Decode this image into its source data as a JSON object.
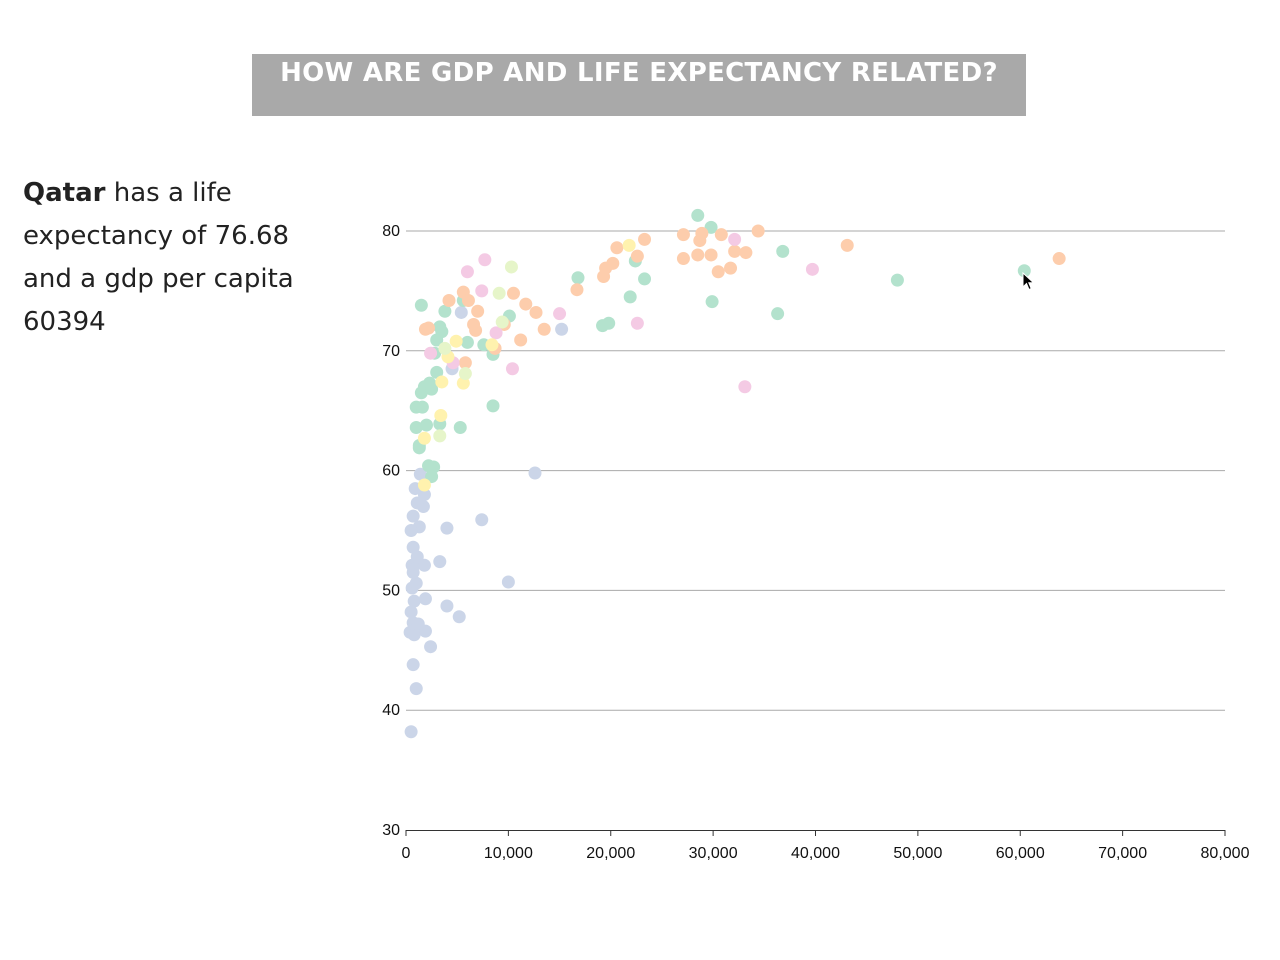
{
  "title": "HOW ARE GDP AND LIFE EXPECTANCY RELATED?",
  "info": {
    "country": "Qatar",
    "text_1": "has a life expectancy of",
    "life_expectancy": "76.68",
    "text_2": "and a gdp per capita",
    "gdp": "60394"
  },
  "colors": {
    "title_bg": "#a9a9a9",
    "green": "#b3e2cd",
    "orange": "#fdcdac",
    "blue": "#cbd5e8",
    "pink": "#f4cae4",
    "yellow": "#fff2ae",
    "lime": "#e6f5c9",
    "gridline": "#aaaaaa"
  },
  "chart_data": {
    "type": "scatter",
    "xlim": [
      0,
      80000
    ],
    "ylim": [
      30,
      80
    ],
    "x_ticks": [
      "0",
      "10,000",
      "20,000",
      "30,000",
      "40,000",
      "50,000",
      "60,000",
      "70,000",
      "80,000"
    ],
    "y_ticks": [
      "30",
      "40",
      "50",
      "60",
      "70",
      "80"
    ],
    "grid": "horizontal",
    "series": [
      {
        "color_key": "blue",
        "points": [
          [
            500,
            38.2
          ],
          [
            1000,
            41.8
          ],
          [
            700,
            43.8
          ],
          [
            2400,
            45.3
          ],
          [
            400,
            46.5
          ],
          [
            800,
            46.3
          ],
          [
            1900,
            46.6
          ],
          [
            5200,
            47.8
          ],
          [
            700,
            47.3
          ],
          [
            1200,
            47.2
          ],
          [
            500,
            48.2
          ],
          [
            4000,
            48.7
          ],
          [
            800,
            49.1
          ],
          [
            1900,
            49.3
          ],
          [
            600,
            50.2
          ],
          [
            10000,
            50.7
          ],
          [
            1000,
            50.6
          ],
          [
            700,
            51.5
          ],
          [
            600,
            52.1
          ],
          [
            1200,
            52.3
          ],
          [
            1800,
            52.1
          ],
          [
            3300,
            52.4
          ],
          [
            1100,
            52.8
          ],
          [
            700,
            53.6
          ],
          [
            4000,
            55.2
          ],
          [
            1300,
            55.3
          ],
          [
            500,
            55.0
          ],
          [
            700,
            56.2
          ],
          [
            7400,
            55.9
          ],
          [
            1700,
            57.0
          ],
          [
            1100,
            57.3
          ],
          [
            900,
            58.5
          ],
          [
            1800,
            58.0
          ],
          [
            1400,
            59.7
          ],
          [
            12600,
            59.8
          ],
          [
            5400,
            73.2
          ],
          [
            15200,
            71.8
          ],
          [
            4500,
            68.5
          ]
        ]
      },
      {
        "color_key": "green",
        "points": [
          [
            1300,
            61.9
          ],
          [
            2000,
            63.8
          ],
          [
            1000,
            63.6
          ],
          [
            1300,
            62.1
          ],
          [
            3300,
            63.9
          ],
          [
            5300,
            63.6
          ],
          [
            8500,
            65.4
          ],
          [
            1000,
            65.3
          ],
          [
            1600,
            65.3
          ],
          [
            1500,
            66.5
          ],
          [
            1800,
            67.0
          ],
          [
            2300,
            67.3
          ],
          [
            2500,
            66.8
          ],
          [
            3000,
            68.2
          ],
          [
            1500,
            73.8
          ],
          [
            3300,
            72.0
          ],
          [
            3500,
            71.6
          ],
          [
            3000,
            70.9
          ],
          [
            2800,
            69.8
          ],
          [
            3800,
            73.3
          ],
          [
            6000,
            70.7
          ],
          [
            7600,
            70.5
          ],
          [
            8500,
            69.7
          ],
          [
            10100,
            72.9
          ],
          [
            5600,
            74.2
          ],
          [
            16800,
            76.1
          ],
          [
            19200,
            72.1
          ],
          [
            19800,
            72.3
          ],
          [
            21900,
            74.5
          ],
          [
            22400,
            77.5
          ],
          [
            23300,
            76.0
          ],
          [
            28500,
            81.3
          ],
          [
            29800,
            80.3
          ],
          [
            29900,
            74.1
          ],
          [
            36300,
            73.1
          ],
          [
            36800,
            78.3
          ],
          [
            48000,
            75.9
          ],
          [
            60394,
            76.68
          ],
          [
            2200,
            60.4
          ],
          [
            2700,
            60.3
          ],
          [
            2500,
            59.5
          ]
        ]
      },
      {
        "color_key": "orange",
        "points": [
          [
            1900,
            71.8
          ],
          [
            2200,
            71.9
          ],
          [
            4200,
            74.2
          ],
          [
            5600,
            74.9
          ],
          [
            6100,
            74.2
          ],
          [
            6600,
            72.2
          ],
          [
            7000,
            73.3
          ],
          [
            6800,
            71.7
          ],
          [
            5800,
            69.0
          ],
          [
            8700,
            70.2
          ],
          [
            9600,
            72.2
          ],
          [
            10500,
            74.8
          ],
          [
            11700,
            73.9
          ],
          [
            11200,
            70.9
          ],
          [
            12700,
            73.2
          ],
          [
            13500,
            71.8
          ],
          [
            16700,
            75.1
          ],
          [
            19300,
            76.2
          ],
          [
            19500,
            76.9
          ],
          [
            20200,
            77.3
          ],
          [
            20600,
            78.6
          ],
          [
            22600,
            77.9
          ],
          [
            23300,
            79.3
          ],
          [
            27100,
            77.7
          ],
          [
            27100,
            79.7
          ],
          [
            28500,
            78.0
          ],
          [
            28700,
            79.2
          ],
          [
            28900,
            79.8
          ],
          [
            29800,
            78.0
          ],
          [
            30500,
            76.6
          ],
          [
            30800,
            79.7
          ],
          [
            31700,
            76.9
          ],
          [
            32100,
            78.3
          ],
          [
            33200,
            78.2
          ],
          [
            34400,
            80.0
          ],
          [
            43100,
            78.8
          ],
          [
            63800,
            77.7
          ]
        ]
      },
      {
        "color_key": "pink",
        "points": [
          [
            2400,
            69.8
          ],
          [
            4600,
            69.0
          ],
          [
            6000,
            76.6
          ],
          [
            7400,
            75.0
          ],
          [
            7700,
            77.6
          ],
          [
            8800,
            71.5
          ],
          [
            10400,
            68.5
          ],
          [
            15000,
            73.1
          ],
          [
            22600,
            72.3
          ],
          [
            32100,
            79.3
          ],
          [
            33100,
            67.0
          ],
          [
            39700,
            76.8
          ]
        ]
      },
      {
        "color_key": "yellow",
        "points": [
          [
            1800,
            62.7
          ],
          [
            1800,
            58.8
          ],
          [
            3400,
            64.6
          ],
          [
            3500,
            67.4
          ],
          [
            4100,
            69.5
          ],
          [
            4900,
            70.8
          ],
          [
            5600,
            67.3
          ],
          [
            8400,
            70.5
          ],
          [
            21800,
            78.8
          ]
        ]
      },
      {
        "color_key": "lime",
        "points": [
          [
            3300,
            62.9
          ],
          [
            3800,
            70.2
          ],
          [
            9100,
            74.8
          ],
          [
            9400,
            72.4
          ],
          [
            10300,
            77.0
          ],
          [
            5800,
            68.1
          ]
        ]
      }
    ]
  }
}
